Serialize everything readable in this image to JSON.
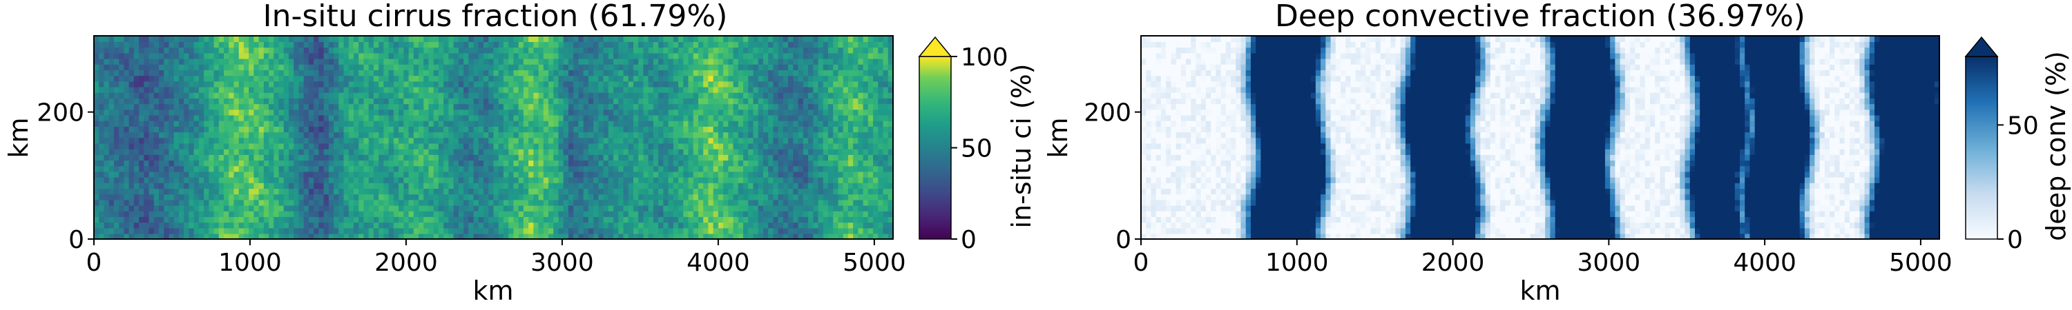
{
  "chart_data": [
    {
      "type": "heatmap",
      "title": "In-situ cirrus fraction (61.79%)",
      "xlabel": "km",
      "ylabel": "km",
      "xlim": [
        0,
        5120
      ],
      "ylim": [
        0,
        320
      ],
      "xticks": [
        0,
        1000,
        2000,
        3000,
        4000,
        5000
      ],
      "yticks": [
        0,
        200
      ],
      "colormap": "viridis",
      "colorbar": {
        "label": "in-situ ci (%)",
        "range": [
          0,
          100
        ],
        "ticks": [
          0,
          50,
          100
        ],
        "extend": "max"
      },
      "column_profile": {
        "x": [
          0,
          150,
          300,
          450,
          600,
          750,
          900,
          1050,
          1200,
          1350,
          1450,
          1600,
          1750,
          1900,
          2050,
          2200,
          2350,
          2500,
          2650,
          2800,
          2950,
          3050,
          3200,
          3350,
          3500,
          3650,
          3800,
          3950,
          4100,
          4250,
          4400,
          4550,
          4700,
          4850,
          5000,
          5120
        ],
        "values": [
          48,
          42,
          35,
          40,
          50,
          66,
          80,
          78,
          65,
          42,
          32,
          60,
          68,
          62,
          70,
          66,
          50,
          48,
          66,
          80,
          72,
          42,
          48,
          58,
          62,
          56,
          70,
          82,
          72,
          58,
          46,
          45,
          62,
          76,
          68,
          60
        ]
      }
    },
    {
      "type": "heatmap",
      "title": "Deep convective fraction (36.97%)",
      "xlabel": "km",
      "ylabel": "km",
      "xlim": [
        0,
        5120
      ],
      "ylim": [
        0,
        320
      ],
      "xticks": [
        0,
        1000,
        2000,
        3000,
        4000,
        5000
      ],
      "yticks": [
        0,
        200
      ],
      "colormap": "Blues",
      "colorbar": {
        "label": "deep conv (%)",
        "range": [
          0,
          80
        ],
        "ticks": [
          0,
          50
        ],
        "extend": "max"
      },
      "bands": [
        {
          "x_start": 760,
          "x_end": 1120
        },
        {
          "x_start": 1750,
          "x_end": 2100
        },
        {
          "x_start": 2650,
          "x_end": 2980
        },
        {
          "x_start": 3580,
          "x_end": 3830
        },
        {
          "x_start": 3930,
          "x_end": 4230
        },
        {
          "x_start": 4740,
          "x_end": 5120
        }
      ]
    }
  ]
}
